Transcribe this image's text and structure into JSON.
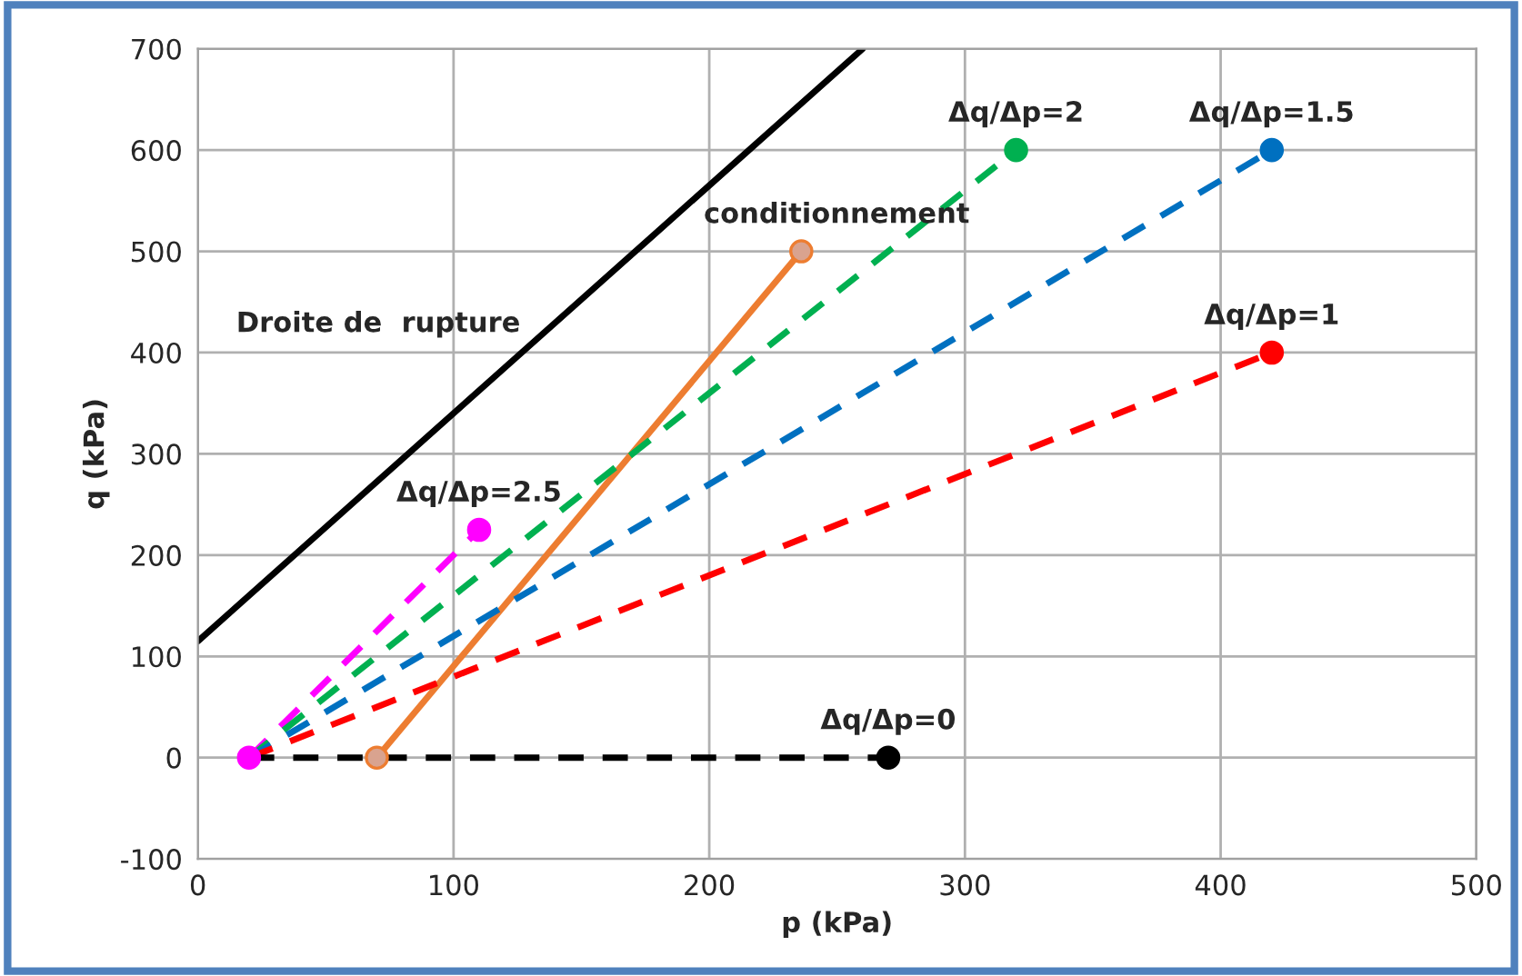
{
  "chart_data": {
    "type": "line",
    "xlabel": "p (kPa)",
    "ylabel": "q (kPa)",
    "xlim": [
      0,
      500
    ],
    "ylim": [
      -100,
      700
    ],
    "xticks": [
      0,
      100,
      200,
      300,
      400,
      500
    ],
    "yticks": [
      -100,
      0,
      100,
      200,
      300,
      400,
      500,
      600,
      700
    ],
    "grid": true,
    "legend": false,
    "series": [
      {
        "x": [
          0,
          260
        ],
        "values": [
          115,
          700
        ],
        "color": "#000000",
        "line_style": "solid"
      },
      {
        "x": [
          70,
          236
        ],
        "values": [
          0,
          500
        ],
        "color": "#ed7d31",
        "line_style": "solid"
      },
      {
        "x": [
          20,
          110
        ],
        "values": [
          0,
          225
        ],
        "color": "#ff00ff",
        "line_style": "dashed"
      },
      {
        "x": [
          20,
          320
        ],
        "values": [
          0,
          600
        ],
        "color": "#00b050",
        "line_style": "dashed"
      },
      {
        "x": [
          20,
          420
        ],
        "values": [
          0,
          600
        ],
        "color": "#0070c0",
        "line_style": "dashed"
      },
      {
        "x": [
          20,
          420
        ],
        "values": [
          0,
          400
        ],
        "color": "#ff0000",
        "line_style": "dashed"
      },
      {
        "x": [
          20,
          270
        ],
        "values": [
          0,
          0
        ],
        "color": "#000000",
        "line_style": "dashed"
      },
      {
        "type": "scatter",
        "marker": "circle",
        "x": [
          20,
          70,
          236,
          110,
          320,
          420,
          420,
          270
        ],
        "values": [
          0,
          0,
          500,
          225,
          600,
          600,
          400,
          0
        ],
        "colors": [
          "#ff00ff",
          "#d9a38f",
          "#d9a38f",
          "#ff00ff",
          "#00b050",
          "#0070c0",
          "#ff0000",
          "#000000"
        ]
      }
    ],
    "annotations": [
      "Droite de  rupture",
      {
        "text": "conditionnement",
        "x": 236,
        "y": 500
      },
      {
        "text": "Δq/Δp=2.5",
        "x": 110,
        "y": 225
      },
      {
        "text": "Δq/Δp=2",
        "x": 320,
        "y": 600
      },
      {
        "text": "Δq/Δp=1.5",
        "x": 420,
        "y": 600
      },
      {
        "text": "Δq/Δp=1",
        "x": 420,
        "y": 400
      },
      {
        "text": "Δq/Δp=0",
        "x": 270,
        "y": 0
      }
    ]
  }
}
